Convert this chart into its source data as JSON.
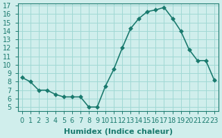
{
  "x": [
    0,
    1,
    2,
    3,
    4,
    5,
    6,
    7,
    8,
    9,
    10,
    11,
    12,
    13,
    14,
    15,
    16,
    17,
    18,
    19,
    20,
    21,
    22,
    23
  ],
  "y": [
    8.5,
    8.0,
    7.0,
    7.0,
    6.5,
    6.2,
    6.2,
    6.2,
    5.0,
    5.0,
    7.5,
    9.5,
    12.0,
    14.3,
    15.5,
    16.3,
    16.5,
    16.8,
    15.5,
    14.0,
    11.8,
    10.5,
    10.5,
    8.2
  ],
  "line_color": "#1a7a6e",
  "marker": "D",
  "marker_size": 3,
  "line_width": 1.2,
  "bg_color": "#d0eeec",
  "grid_color": "#a0d8d4",
  "xlabel": "Humidex (Indice chaleur)",
  "xlim": [
    -0.5,
    23.5
  ],
  "ylim": [
    4.5,
    17.3
  ],
  "yticks": [
    5,
    6,
    7,
    8,
    9,
    10,
    11,
    12,
    13,
    14,
    15,
    16,
    17
  ],
  "xtick_labels": [
    "0",
    "1",
    "2",
    "3",
    "4",
    "5",
    "6",
    "7",
    "8",
    "9",
    "10",
    "11",
    "12",
    "13",
    "14",
    "15",
    "16",
    "17",
    "18",
    "19",
    "20",
    "21",
    "22",
    "23"
  ],
  "tick_color": "#1a7a6e",
  "label_fontsize": 8,
  "tick_fontsize": 7
}
